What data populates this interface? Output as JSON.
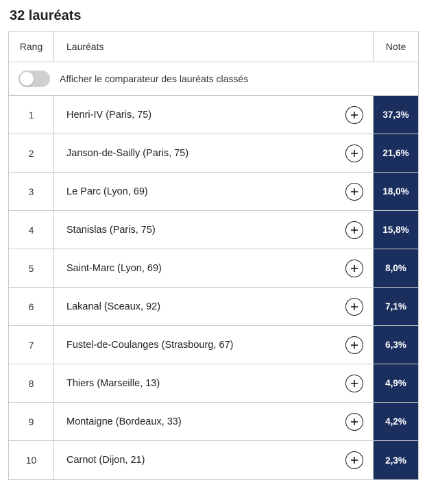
{
  "title": "32 lauréats",
  "columns": {
    "rang": "Rang",
    "laureats": "Lauréats",
    "note": "Note"
  },
  "toggle": {
    "label": "Afficher le comparateur des lauréats classés",
    "on": false
  },
  "colors": {
    "note_bg": "#1b2f5e",
    "note_text": "#ffffff",
    "border": "#c8c8c8",
    "toggle_bg": "#d0d0d0",
    "text": "#222222"
  },
  "rows": [
    {
      "rank": "1",
      "name": "Henri-IV (Paris, 75)",
      "note": "37,3%"
    },
    {
      "rank": "2",
      "name": "Janson-de-Sailly (Paris, 75)",
      "note": "21,6%"
    },
    {
      "rank": "3",
      "name": "Le Parc (Lyon, 69)",
      "note": "18,0%"
    },
    {
      "rank": "4",
      "name": "Stanislas (Paris, 75)",
      "note": "15,8%"
    },
    {
      "rank": "5",
      "name": "Saint-Marc (Lyon, 69)",
      "note": "8,0%"
    },
    {
      "rank": "6",
      "name": "Lakanal (Sceaux, 92)",
      "note": "7,1%"
    },
    {
      "rank": "7",
      "name": "Fustel-de-Coulanges (Strasbourg, 67)",
      "note": "6,3%"
    },
    {
      "rank": "8",
      "name": "Thiers (Marseille, 13)",
      "note": "4,9%"
    },
    {
      "rank": "9",
      "name": "Montaigne (Bordeaux, 33)",
      "note": "4,2%"
    },
    {
      "rank": "10",
      "name": "Carnot (Dijon, 21)",
      "note": "2,3%"
    }
  ]
}
